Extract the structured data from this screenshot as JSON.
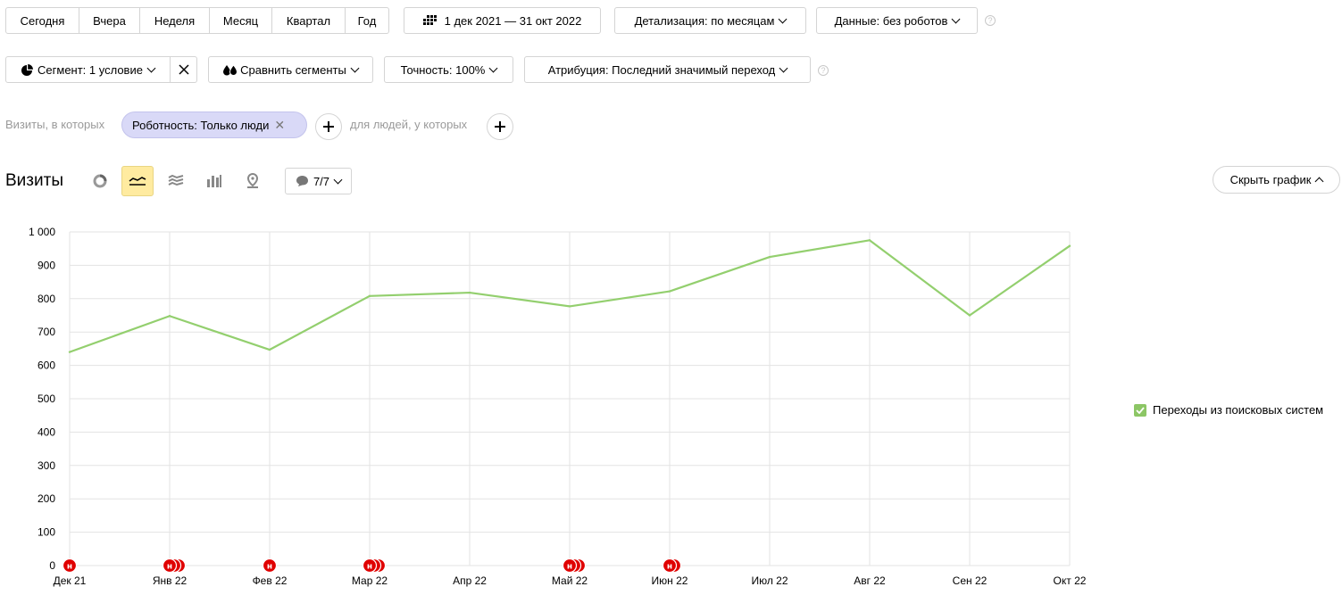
{
  "periods": [
    {
      "label": "Сегодня"
    },
    {
      "label": "Вчера"
    },
    {
      "label": "Неделя"
    },
    {
      "label": "Месяц"
    },
    {
      "label": "Квартал"
    },
    {
      "label": "Год"
    }
  ],
  "date_range": "1 дек 2021 — 31 окт 2022",
  "detail": "Детализация: по месяцам",
  "data_filter": "Данные: без роботов",
  "help_glyph": "?",
  "segment": "Сегмент: 1 условие",
  "compare": "Сравнить сегменты",
  "accuracy": "Точность: 100%",
  "attribution": "Атрибуция: Последний значимый переход",
  "filter": {
    "prefix": "Визиты, в которых",
    "chip": "Роботность: Только люди",
    "suffix": "для людей, у которых"
  },
  "chart_header": {
    "title": "Визиты",
    "notes_count": "7/7",
    "hide_button": "Скрыть график"
  },
  "colors": {
    "line": "#93cf6e",
    "marker": "#e00000",
    "active_type": "#ffeba0"
  },
  "chart_data": {
    "type": "line",
    "categories": [
      "Дек 21",
      "Янв 22",
      "Фев 22",
      "Мар 22",
      "Апр 22",
      "Май 22",
      "Июн 22",
      "Июл 22",
      "Авг 22",
      "Сен 22",
      "Окт 22"
    ],
    "series": [
      {
        "name": "Переходы из поисковых систем",
        "values": [
          640,
          748,
          647,
          808,
          818,
          777,
          822,
          925,
          975,
          750,
          958
        ]
      }
    ],
    "yticks": [
      "0",
      "100",
      "200",
      "300",
      "400",
      "500",
      "600",
      "700",
      "800",
      "900",
      "1 000"
    ],
    "ylim": [
      0,
      1000
    ],
    "grid": true,
    "legend": "right",
    "markers": [
      {
        "x": "Дек 21",
        "count": 1,
        "label": "н"
      },
      {
        "x": "Янв 22",
        "count": 3,
        "label": "н"
      },
      {
        "x": "Фев 22",
        "count": 1,
        "label": "н"
      },
      {
        "x": "Мар 22",
        "count": 3,
        "label": "н"
      },
      {
        "x": "Май 22",
        "count": 3,
        "label": "н"
      },
      {
        "x": "Июн 22",
        "count": 2,
        "label": "н"
      }
    ]
  }
}
